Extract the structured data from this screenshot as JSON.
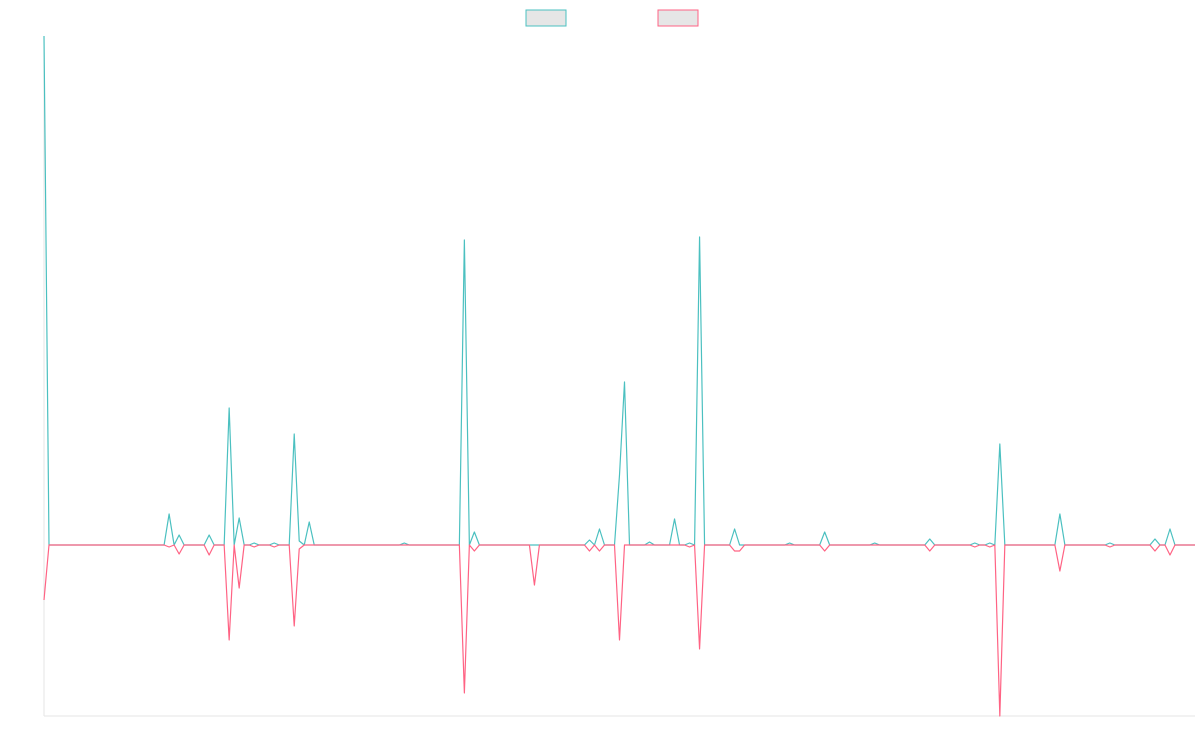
{
  "chart_data": {
    "type": "line",
    "legend": "top",
    "grid": false,
    "xlim": [
      0,
      230
    ],
    "ylim": [
      -171,
      509
    ],
    "x": [
      0,
      1,
      24,
      25,
      26,
      27,
      28,
      32,
      33,
      34,
      36,
      37,
      38,
      39,
      40,
      41,
      42,
      43,
      45,
      46,
      47,
      49,
      50,
      51,
      52,
      53,
      54,
      71,
      72,
      73,
      83,
      84,
      85,
      86,
      87,
      97,
      98,
      99,
      108,
      109,
      110,
      111,
      112,
      114,
      115,
      116,
      117,
      120,
      121,
      122,
      125,
      126,
      127,
      128,
      129,
      130,
      131,
      132,
      137,
      138,
      139,
      140,
      148,
      149,
      150,
      155,
      156,
      157,
      165,
      166,
      167,
      176,
      177,
      178,
      185,
      186,
      187,
      188,
      189,
      190,
      191,
      192,
      202,
      203,
      204,
      212,
      213,
      214,
      221,
      222,
      223,
      224,
      225,
      226,
      230
    ],
    "series": [
      {
        "color": "#4bc0c0",
        "values": [
          509,
          0,
          0,
          31,
          0,
          10,
          0,
          0,
          10,
          0,
          0,
          137,
          0,
          27,
          0,
          0,
          2,
          0,
          0,
          2,
          0,
          0,
          111,
          4,
          0,
          23,
          0,
          0,
          2,
          0,
          0,
          305,
          0,
          13,
          0,
          0,
          0,
          0,
          0,
          5,
          0,
          16,
          0,
          0,
          70,
          163,
          0,
          0,
          3,
          0,
          0,
          26,
          0,
          0,
          2,
          0,
          308,
          0,
          0,
          16,
          0,
          0,
          0,
          2,
          0,
          0,
          13,
          0,
          0,
          2,
          0,
          0,
          6,
          0,
          0,
          2,
          0,
          0,
          2,
          0,
          101,
          0,
          0,
          31,
          0,
          0,
          2,
          0,
          0,
          6,
          0,
          0,
          16,
          0,
          0
        ]
      },
      {
        "color": "#ff6384",
        "values": [
          -55,
          0,
          0,
          -2,
          0,
          -9,
          0,
          0,
          -10,
          0,
          0,
          -95,
          0,
          -43,
          0,
          0,
          -2,
          0,
          0,
          -2,
          0,
          0,
          -81,
          -4,
          0,
          0,
          0,
          0,
          0,
          0,
          0,
          -148,
          0,
          -6,
          0,
          0,
          -40,
          0,
          0,
          -6,
          0,
          -6,
          0,
          0,
          -95,
          0,
          0,
          0,
          0,
          0,
          0,
          0,
          0,
          0,
          -2,
          0,
          -104,
          0,
          0,
          -6,
          -6,
          0,
          0,
          0,
          0,
          0,
          -6,
          0,
          0,
          0,
          0,
          0,
          -6,
          0,
          0,
          -2,
          0,
          0,
          -2,
          0,
          -171,
          0,
          0,
          -26,
          0,
          0,
          -2,
          0,
          0,
          -6,
          0,
          0,
          -10,
          0,
          0
        ]
      }
    ]
  }
}
